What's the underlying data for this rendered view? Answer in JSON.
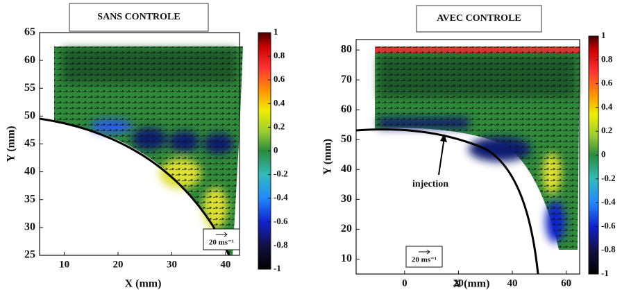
{
  "chart_data": [
    {
      "type": "heatmap",
      "title": "SANS CONTROLE",
      "xlabel": "X (mm)",
      "ylabel": "Y (mm)",
      "xlim": [
        5.4,
        42.6
      ],
      "xticks": [
        10,
        20,
        30,
        40
      ],
      "ylim": [
        25,
        65
      ],
      "yticks": [
        25,
        30,
        35,
        40,
        45,
        50,
        55,
        60,
        65
      ],
      "clim": [
        -1,
        1
      ],
      "cticks": [
        1,
        0.8,
        0.6,
        0.4,
        0.2,
        0,
        -0.2,
        -0.4,
        -0.6,
        -0.8,
        -1
      ],
      "scale_label": "20 ms⁻¹"
    },
    {
      "type": "heatmap",
      "title": "AVEC CONTROLE",
      "xlabel": "X (mm)",
      "ylabel": "Y (mm)",
      "xlim": [
        -18,
        65
      ],
      "xticks": [
        0,
        20,
        40,
        60
      ],
      "ylim": [
        5,
        83.5
      ],
      "yticks": [
        10,
        20,
        30,
        40,
        50,
        60,
        70,
        80
      ],
      "clim": [
        -1,
        1
      ],
      "cticks": [
        1,
        0.8,
        0.6,
        0.4,
        0.2,
        0,
        -0.2,
        -0.4,
        -0.6,
        -0.8,
        -1
      ],
      "scale_label": "20 ms⁻¹",
      "annotation": "injection"
    }
  ]
}
